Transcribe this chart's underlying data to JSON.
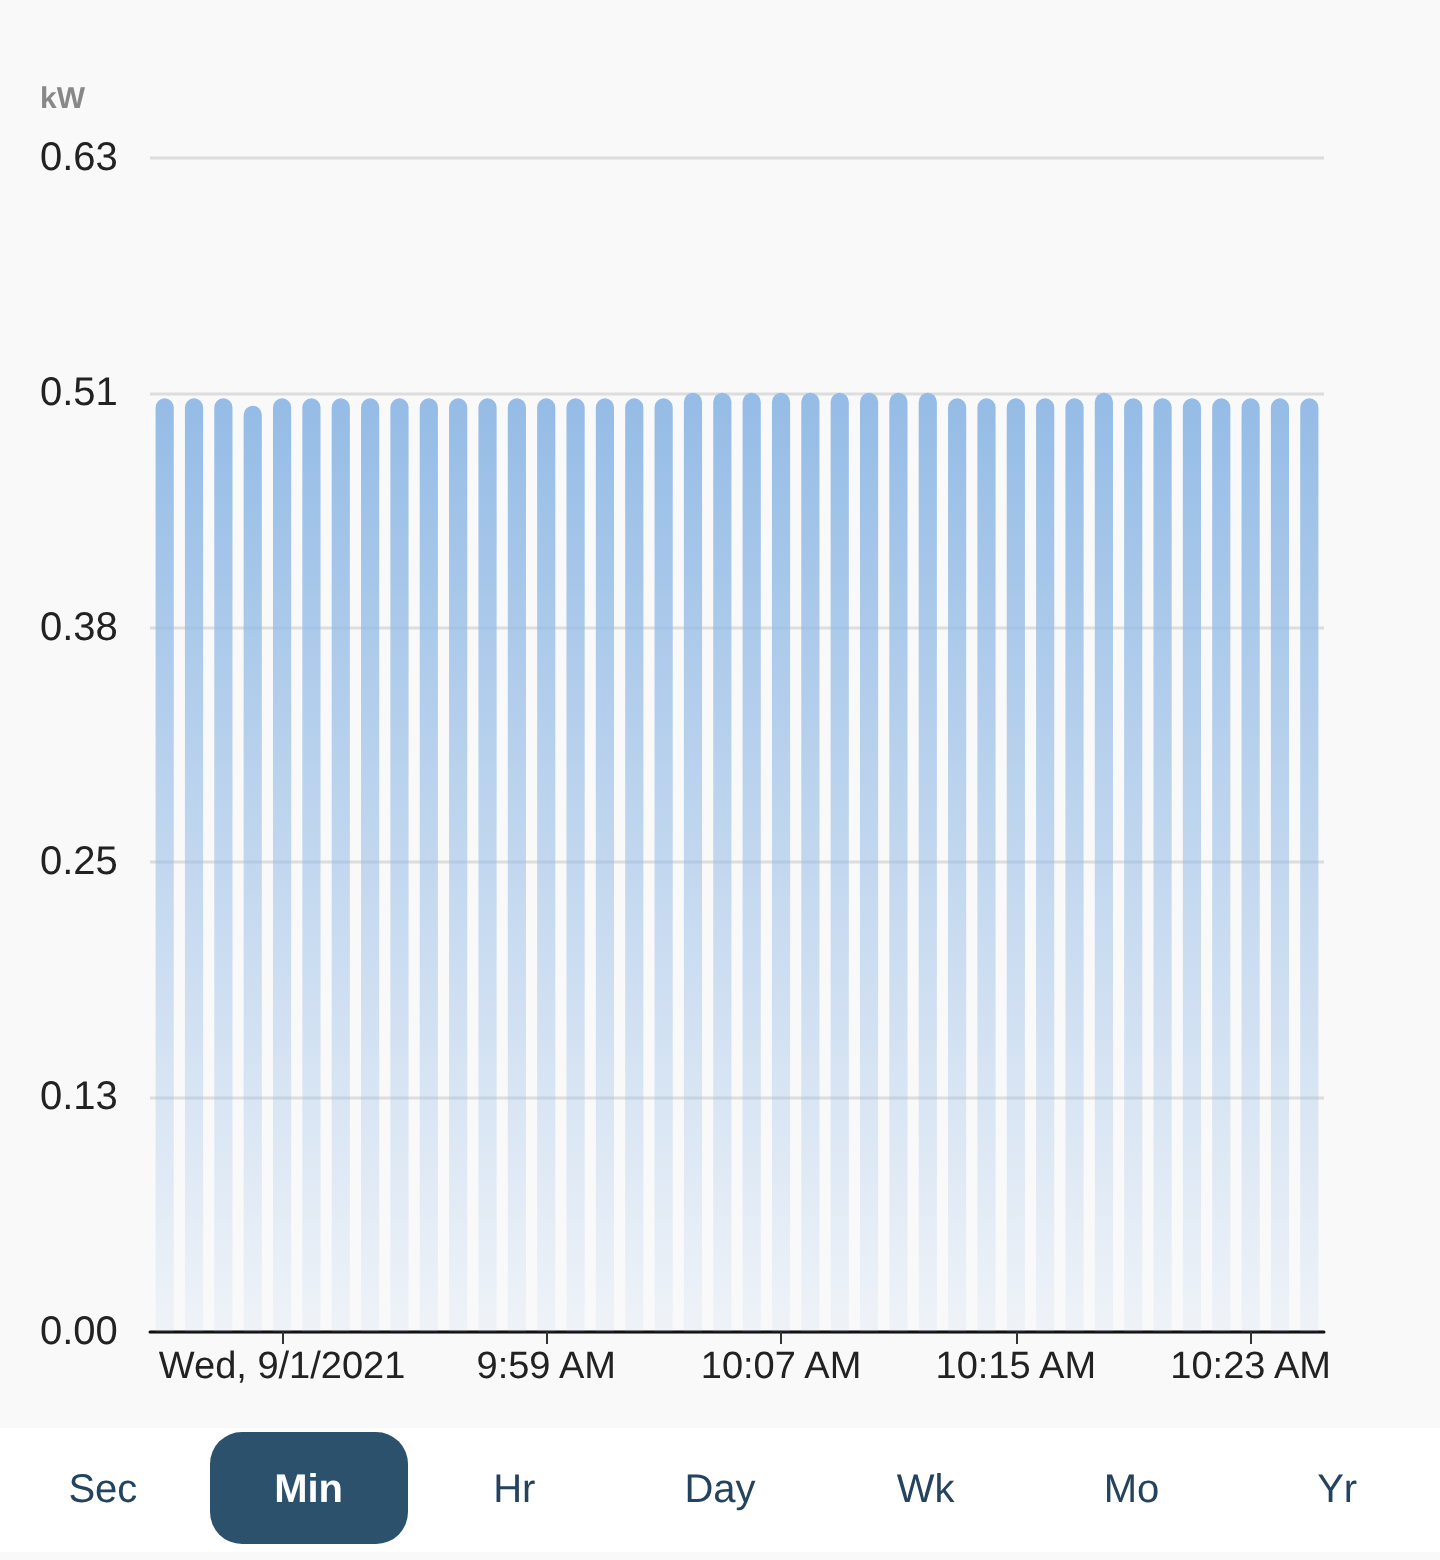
{
  "chart_data": {
    "type": "bar",
    "ylabel": "kW",
    "categories": [
      null,
      null,
      null,
      null,
      "Wed, 9/1/2021",
      null,
      null,
      null,
      null,
      null,
      null,
      null,
      null,
      "9:59 AM",
      null,
      null,
      null,
      null,
      null,
      null,
      null,
      "10:07 AM",
      null,
      null,
      null,
      null,
      null,
      null,
      null,
      "10:15 AM",
      null,
      null,
      null,
      null,
      null,
      null,
      null,
      "10:23 AM",
      null,
      null
    ],
    "values": [
      0.503,
      0.503,
      0.503,
      0.499,
      0.503,
      0.503,
      0.503,
      0.503,
      0.503,
      0.503,
      0.503,
      0.503,
      0.503,
      0.503,
      0.503,
      0.503,
      0.503,
      0.503,
      0.506,
      0.506,
      0.506,
      0.506,
      0.506,
      0.506,
      0.506,
      0.506,
      0.506,
      0.503,
      0.503,
      0.503,
      0.503,
      0.503,
      0.506,
      0.503,
      0.503,
      0.503,
      0.503,
      0.503,
      0.503,
      0.503
    ],
    "color": "#95bce6",
    "ylim": [
      0,
      0.6325
    ],
    "yticks": [
      {
        "value": 0,
        "label": "0.00"
      },
      {
        "value": 0.1265,
        "label": "0.13"
      },
      {
        "value": 0.253,
        "label": "0.25"
      },
      {
        "value": 0.3795,
        "label": "0.38"
      },
      {
        "value": 0.506,
        "label": "0.51"
      },
      {
        "value": 0.6325,
        "label": "0.63"
      }
    ],
    "grid": "y",
    "annotations": [
      "Sec",
      "Min",
      "Hr",
      "Day",
      "Wk",
      "Mo",
      "Yr"
    ]
  }
}
